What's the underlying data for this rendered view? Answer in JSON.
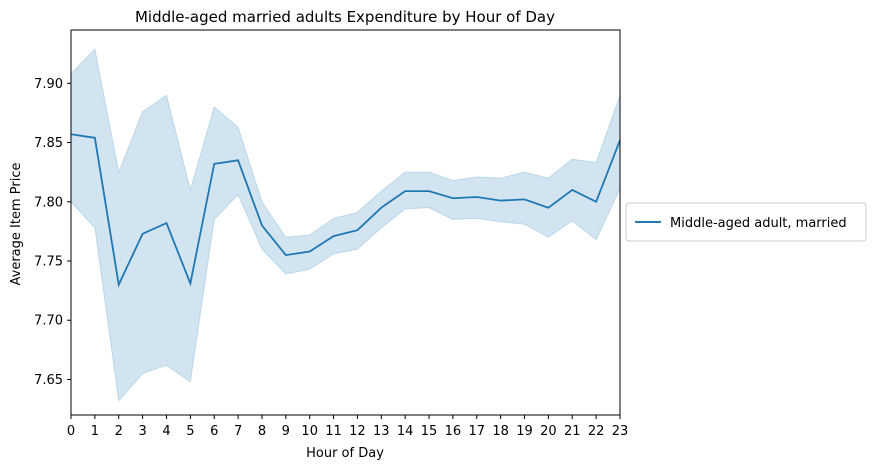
{
  "chart_data": {
    "type": "line",
    "title": "Middle-aged married adults Expenditure by Hour of Day",
    "xlabel": "Hour of Day",
    "ylabel": "Average Item Price",
    "xlim": [
      0,
      23
    ],
    "ylim": [
      7.62,
      7.945
    ],
    "x": [
      0,
      1,
      2,
      3,
      4,
      5,
      6,
      7,
      8,
      9,
      10,
      11,
      12,
      13,
      14,
      15,
      16,
      17,
      18,
      19,
      20,
      21,
      22,
      23
    ],
    "xticks": [
      "0",
      "1",
      "2",
      "3",
      "4",
      "5",
      "6",
      "7",
      "8",
      "9",
      "10",
      "11",
      "12",
      "13",
      "14",
      "15",
      "16",
      "17",
      "18",
      "19",
      "20",
      "21",
      "22",
      "23"
    ],
    "yticks": [
      "7.65",
      "7.70",
      "7.75",
      "7.80",
      "7.85",
      "7.90"
    ],
    "ytick_values": [
      7.65,
      7.7,
      7.75,
      7.8,
      7.85,
      7.9
    ],
    "grid": false,
    "legend_position": "outside-right",
    "series": [
      {
        "name": "Middle-aged adult, married",
        "color": "#1f77b4",
        "band_color": "#1f77b4",
        "values": [
          7.857,
          7.854,
          7.73,
          7.773,
          7.782,
          7.731,
          7.832,
          7.835,
          7.78,
          7.755,
          7.758,
          7.771,
          7.776,
          7.795,
          7.809,
          7.809,
          7.803,
          7.804,
          7.801,
          7.802,
          7.795,
          7.81,
          7.8,
          7.852
        ],
        "ci_upper": [
          7.908,
          7.929,
          7.825,
          7.876,
          7.89,
          7.81,
          7.88,
          7.863,
          7.8,
          7.77,
          7.772,
          7.786,
          7.791,
          7.809,
          7.825,
          7.825,
          7.818,
          7.821,
          7.82,
          7.825,
          7.82,
          7.836,
          7.833,
          7.89
        ],
        "ci_lower": [
          7.8,
          7.778,
          7.632,
          7.655,
          7.662,
          7.648,
          7.785,
          7.806,
          7.76,
          7.739,
          7.743,
          7.756,
          7.76,
          7.778,
          7.794,
          7.795,
          7.785,
          7.786,
          7.783,
          7.781,
          7.77,
          7.784,
          7.768,
          7.811
        ]
      }
    ]
  }
}
